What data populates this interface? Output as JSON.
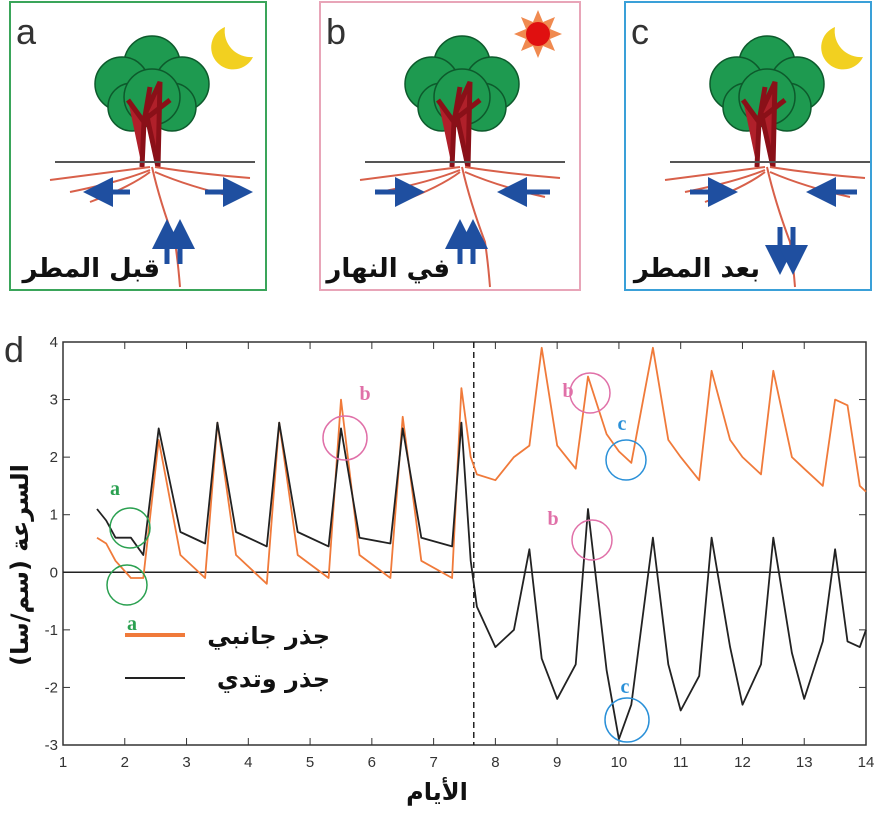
{
  "panels": [
    {
      "letter": "a",
      "label": "قبل المطر"
    },
    {
      "letter": "b",
      "label": "في النهار"
    },
    {
      "letter": "c",
      "label": "بعد المطر"
    }
  ],
  "chart_data": {
    "type": "line",
    "panel_letter": "d",
    "y_label": "السرعة (سم/سا)",
    "x_label": "الأيام",
    "x": [
      1.55,
      1.7,
      1.85,
      2.1,
      2.3,
      2.55,
      2.9,
      3.3,
      3.5,
      3.8,
      4.3,
      4.5,
      4.8,
      5.3,
      5.5,
      5.8,
      6.3,
      6.5,
      6.8,
      7.3,
      7.45,
      7.6,
      7.7,
      8.0,
      8.3,
      8.55,
      8.75,
      9.0,
      9.3,
      9.5,
      9.8,
      10.0,
      10.2,
      10.55,
      10.8,
      11.0,
      11.3,
      11.5,
      11.8,
      12.0,
      12.3,
      12.5,
      12.8,
      13.0,
      13.3,
      13.5,
      13.7,
      13.9,
      14.0
    ],
    "series": [
      {
        "name": "جذر جانبي",
        "color": "#f07a3a",
        "values": [
          0.6,
          0.5,
          0.2,
          -0.1,
          -0.1,
          2.3,
          0.3,
          -0.1,
          2.6,
          0.3,
          -0.2,
          2.6,
          0.3,
          -0.1,
          3.0,
          0.3,
          -0.1,
          2.7,
          0.2,
          -0.1,
          3.2,
          2.0,
          1.7,
          1.6,
          2.0,
          2.2,
          3.9,
          2.2,
          1.8,
          3.4,
          2.4,
          2.1,
          1.9,
          3.9,
          2.3,
          2.0,
          1.6,
          3.5,
          2.3,
          2.0,
          1.7,
          3.5,
          2.0,
          1.8,
          1.5,
          3.0,
          2.9,
          1.5,
          1.4
        ]
      },
      {
        "name": "جذر وتدي",
        "color": "#222222",
        "values": [
          1.1,
          0.9,
          0.6,
          0.6,
          0.3,
          2.5,
          0.7,
          0.5,
          2.6,
          0.7,
          0.45,
          2.6,
          0.7,
          0.45,
          2.5,
          0.6,
          0.5,
          2.5,
          0.6,
          0.45,
          2.6,
          0.2,
          -0.6,
          -1.3,
          -1.0,
          0.4,
          -1.5,
          -2.2,
          -1.6,
          1.1,
          -1.7,
          -2.9,
          -2.3,
          0.6,
          -1.6,
          -2.4,
          -1.8,
          0.6,
          -1.3,
          -2.3,
          -1.6,
          0.6,
          -1.4,
          -2.2,
          -1.2,
          0.4,
          -1.2,
          -1.3,
          -1.0
        ]
      }
    ],
    "xlim": [
      1,
      14
    ],
    "xticks": [
      1,
      2,
      3,
      4,
      5,
      6,
      7,
      8,
      9,
      10,
      11,
      12,
      13,
      14
    ],
    "ylim": [
      -3,
      4
    ],
    "yticks": [
      -3,
      -2,
      -1,
      0,
      1,
      2,
      3,
      4
    ],
    "vline_x": 7.65,
    "annotations": [
      {
        "text": "a",
        "color": "#2aa050"
      },
      {
        "text": "a",
        "color": "#2aa050"
      },
      {
        "text": "b",
        "color": "#e070a8"
      },
      {
        "text": "b",
        "color": "#e070a8"
      },
      {
        "text": "b",
        "color": "#e070a8"
      },
      {
        "text": "c",
        "color": "#2a90d8"
      },
      {
        "text": "c",
        "color": "#2a90d8"
      }
    ]
  }
}
